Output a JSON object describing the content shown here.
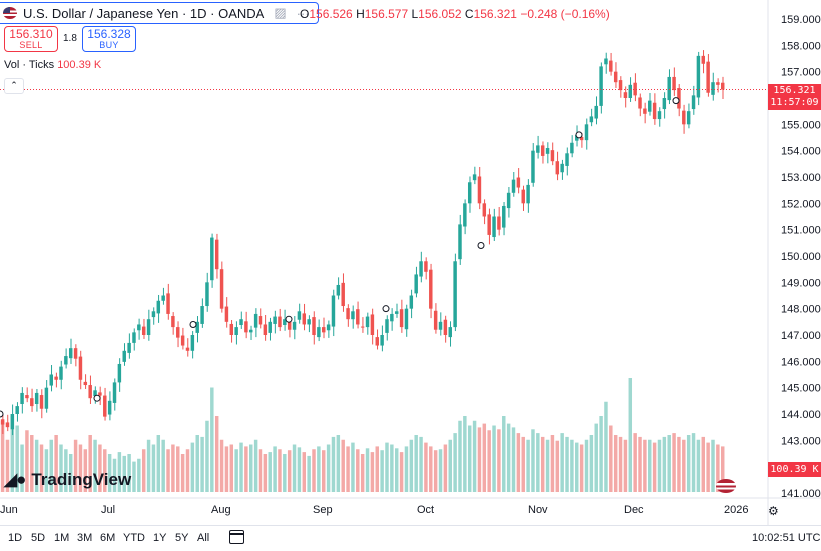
{
  "header": {
    "symbol_title": "U.S. Dollar / Japanese Yen · 1D · OANDA",
    "ohlc": {
      "o_label": "O",
      "o": "156.526",
      "h_label": "H",
      "h": "156.577",
      "l_label": "L",
      "l": "156.052",
      "c_label": "C",
      "c": "156.321",
      "change": "−0.248 (−0.16%)"
    },
    "sell": {
      "price": "156.310",
      "label": "SELL"
    },
    "buy": {
      "price": "156.328",
      "label": "BUY"
    },
    "spread": "1.8",
    "volume_legend": {
      "label": "Vol · Ticks",
      "value": "100.39 K"
    }
  },
  "logo": {
    "text": "TradingView"
  },
  "price_tag": {
    "price": "156.321",
    "countdown": "11:57:09"
  },
  "volume_tag": "100.39 K",
  "bottom_bar": {
    "ranges": [
      "1D",
      "5D",
      "1M",
      "3M",
      "6M",
      "YTD",
      "1Y",
      "5Y",
      "All"
    ],
    "clock": "10:02:51 UTC"
  },
  "colors": {
    "up": "#26a69a",
    "down": "#ef5350",
    "vol_up": "#9fd8d0",
    "vol_down": "#f3a9a7",
    "price_line": "#f23645"
  },
  "chart_data": {
    "type": "candlestick",
    "y_range": [
      140.9,
      159.2
    ],
    "y_ticks": [
      "159.000",
      "158.000",
      "157.000",
      "156.000",
      "155.000",
      "154.000",
      "153.000",
      "152.000",
      "151.000",
      "150.000",
      "149.000",
      "148.000",
      "147.000",
      "146.000",
      "145.000",
      "144.000",
      "143.000",
      "142.000",
      "141.000"
    ],
    "x_ticks": [
      "Jun",
      "Jul",
      "Aug",
      "Sep",
      "Oct",
      "Nov",
      "Dec",
      "2026"
    ],
    "last_price": 156.321,
    "volume_last": "100.39K",
    "closes": [
      143.8,
      143.6,
      143.5,
      144.0,
      144.3,
      144.8,
      144.6,
      144.3,
      144.8,
      144.2,
      145.0,
      145.5,
      145.3,
      145.8,
      146.2,
      146.5,
      146.1,
      145.3,
      145.1,
      144.6,
      144.9,
      144.7,
      143.9,
      144.5,
      145.2,
      145.9,
      146.4,
      146.7,
      147.1,
      147.4,
      147.0,
      147.6,
      147.9,
      148.3,
      148.5,
      147.8,
      147.3,
      146.9,
      146.6,
      146.4,
      147.0,
      147.5,
      148.1,
      149.0,
      150.7,
      149.5,
      148.0,
      147.5,
      147.0,
      147.3,
      147.6,
      147.1,
      147.2,
      147.8,
      147.4,
      147.0,
      147.5,
      147.7,
      147.3,
      147.6,
      147.2,
      147.5,
      147.9,
      147.4,
      147.6,
      147.0,
      147.3,
      147.1,
      147.4,
      148.5,
      148.9,
      148.1,
      147.6,
      147.9,
      147.4,
      147.3,
      147.7,
      147.0,
      146.6,
      147.0,
      147.6,
      147.8,
      147.9,
      147.3,
      148.0,
      148.5,
      149.3,
      149.8,
      149.4,
      148.0,
      147.2,
      147.5,
      147.0,
      147.3,
      149.8,
      151.2,
      152.0,
      152.8,
      153.1,
      152.0,
      151.5,
      150.8,
      151.5,
      151.0,
      151.9,
      152.4,
      152.9,
      152.6,
      152.0,
      152.7,
      154.0,
      154.2,
      153.8,
      154.1,
      153.6,
      153.1,
      153.5,
      153.9,
      154.3,
      154.6,
      154.4,
      155.0,
      155.3,
      155.7,
      157.2,
      157.5,
      157.0,
      156.6,
      156.3,
      156.0,
      156.5,
      156.1,
      155.6,
      155.4,
      155.9,
      155.2,
      155.5,
      156.0,
      156.8,
      156.3,
      155.6,
      155.0,
      155.5,
      156.1,
      157.6,
      157.3,
      156.2,
      156.6,
      156.5,
      156.321
    ],
    "volume": [
      60,
      75,
      55,
      80,
      70,
      50,
      65,
      60,
      55,
      50,
      45,
      55,
      60,
      50,
      45,
      40,
      55,
      50,
      45,
      60,
      55,
      50,
      45,
      40,
      35,
      42,
      38,
      40,
      32,
      35,
      45,
      55,
      50,
      60,
      55,
      45,
      50,
      48,
      40,
      45,
      52,
      60,
      58,
      75,
      110,
      80,
      55,
      48,
      50,
      45,
      52,
      48,
      50,
      55,
      45,
      40,
      42,
      48,
      45,
      40,
      44,
      50,
      47,
      42,
      38,
      45,
      48,
      44,
      50,
      58,
      60,
      55,
      48,
      52,
      45,
      40,
      46,
      42,
      48,
      44,
      52,
      50,
      46,
      42,
      48,
      55,
      60,
      58,
      52,
      48,
      44,
      45,
      50,
      55,
      62,
      75,
      80,
      70,
      75,
      68,
      72,
      65,
      70,
      66,
      80,
      72,
      68,
      62,
      58,
      55,
      66,
      62,
      58,
      55,
      60,
      54,
      62,
      58,
      55,
      52,
      50,
      55,
      60,
      72,
      80,
      95,
      70,
      60,
      58,
      55,
      120,
      62,
      58,
      55,
      55,
      52,
      55,
      58,
      60,
      62,
      58,
      55,
      60,
      62,
      55,
      58,
      52,
      55,
      50,
      48
    ]
  }
}
